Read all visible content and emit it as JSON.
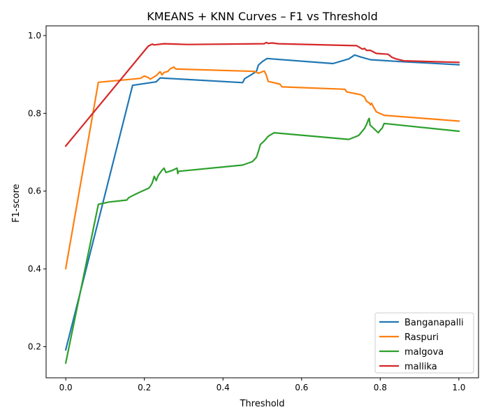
{
  "chart_data": {
    "type": "line",
    "title": "KMEANS + KNN Curves – F1 vs Threshold",
    "xlabel": "Threshold",
    "ylabel": "F1-score",
    "xlim": [
      -0.05,
      1.05
    ],
    "ylim": [
      0.12,
      1.025
    ],
    "xticks": [
      0.0,
      0.2,
      0.4,
      0.6,
      0.8,
      1.0
    ],
    "xtick_labels": [
      "0.0",
      "0.2",
      "0.4",
      "0.6",
      "0.8",
      "1.0"
    ],
    "yticks": [
      0.2,
      0.4,
      0.6,
      0.8,
      1.0
    ],
    "ytick_labels": [
      "0.2",
      "0.4",
      "0.6",
      "0.8",
      "1.0"
    ],
    "grid": false,
    "legend_position": "lower-right",
    "series": [
      {
        "name": "Banganapalli",
        "color": "#1f77b4",
        "points": [
          [
            0.0,
            0.192
          ],
          [
            0.17,
            0.872
          ],
          [
            0.23,
            0.881
          ],
          [
            0.24,
            0.891
          ],
          [
            0.45,
            0.879
          ],
          [
            0.455,
            0.889
          ],
          [
            0.47,
            0.898
          ],
          [
            0.485,
            0.908
          ],
          [
            0.49,
            0.924
          ],
          [
            0.5,
            0.933
          ],
          [
            0.512,
            0.941
          ],
          [
            0.68,
            0.928
          ],
          [
            0.72,
            0.94
          ],
          [
            0.735,
            0.95
          ],
          [
            0.75,
            0.945
          ],
          [
            0.775,
            0.938
          ],
          [
            0.85,
            0.933
          ],
          [
            1.0,
            0.925
          ]
        ]
      },
      {
        "name": "Raspuri",
        "color": "#ff7f0e",
        "points": [
          [
            0.0,
            0.401
          ],
          [
            0.083,
            0.88
          ],
          [
            0.17,
            0.888
          ],
          [
            0.19,
            0.89
          ],
          [
            0.2,
            0.896
          ],
          [
            0.21,
            0.892
          ],
          [
            0.215,
            0.888
          ],
          [
            0.23,
            0.897
          ],
          [
            0.24,
            0.907
          ],
          [
            0.245,
            0.899
          ],
          [
            0.25,
            0.905
          ],
          [
            0.26,
            0.908
          ],
          [
            0.265,
            0.914
          ],
          [
            0.275,
            0.919
          ],
          [
            0.28,
            0.914
          ],
          [
            0.48,
            0.908
          ],
          [
            0.49,
            0.903
          ],
          [
            0.505,
            0.909
          ],
          [
            0.51,
            0.899
          ],
          [
            0.515,
            0.882
          ],
          [
            0.545,
            0.875
          ],
          [
            0.55,
            0.868
          ],
          [
            0.71,
            0.862
          ],
          [
            0.715,
            0.855
          ],
          [
            0.75,
            0.848
          ],
          [
            0.76,
            0.842
          ],
          [
            0.765,
            0.831
          ],
          [
            0.772,
            0.827
          ],
          [
            0.775,
            0.822
          ],
          [
            0.778,
            0.826
          ],
          [
            0.782,
            0.818
          ],
          [
            0.79,
            0.804
          ],
          [
            0.81,
            0.795
          ],
          [
            1.0,
            0.78
          ]
        ]
      },
      {
        "name": "malgova",
        "color": "#2ca02c",
        "points": [
          [
            0.0,
            0.158
          ],
          [
            0.083,
            0.566
          ],
          [
            0.11,
            0.572
          ],
          [
            0.155,
            0.577
          ],
          [
            0.16,
            0.583
          ],
          [
            0.175,
            0.591
          ],
          [
            0.19,
            0.598
          ],
          [
            0.21,
            0.607
          ],
          [
            0.215,
            0.612
          ],
          [
            0.22,
            0.621
          ],
          [
            0.225,
            0.638
          ],
          [
            0.23,
            0.627
          ],
          [
            0.235,
            0.64
          ],
          [
            0.245,
            0.654
          ],
          [
            0.25,
            0.659
          ],
          [
            0.255,
            0.648
          ],
          [
            0.27,
            0.653
          ],
          [
            0.283,
            0.659
          ],
          [
            0.285,
            0.645
          ],
          [
            0.287,
            0.651
          ],
          [
            0.45,
            0.667
          ],
          [
            0.475,
            0.676
          ],
          [
            0.485,
            0.687
          ],
          [
            0.49,
            0.702
          ],
          [
            0.495,
            0.72
          ],
          [
            0.505,
            0.729
          ],
          [
            0.515,
            0.741
          ],
          [
            0.53,
            0.75
          ],
          [
            0.72,
            0.733
          ],
          [
            0.745,
            0.743
          ],
          [
            0.76,
            0.761
          ],
          [
            0.765,
            0.771
          ],
          [
            0.77,
            0.784
          ],
          [
            0.772,
            0.787
          ],
          [
            0.774,
            0.77
          ],
          [
            0.795,
            0.75
          ],
          [
            0.8,
            0.757
          ],
          [
            0.805,
            0.762
          ],
          [
            0.81,
            0.774
          ],
          [
            1.0,
            0.754
          ]
        ]
      },
      {
        "name": "mallika",
        "color": "#d62728",
        "points": [
          [
            0.0,
            0.716
          ],
          [
            0.21,
            0.973
          ],
          [
            0.22,
            0.978
          ],
          [
            0.225,
            0.976
          ],
          [
            0.25,
            0.979
          ],
          [
            0.31,
            0.977
          ],
          [
            0.505,
            0.979
          ],
          [
            0.51,
            0.982
          ],
          [
            0.515,
            0.98
          ],
          [
            0.525,
            0.981
          ],
          [
            0.54,
            0.979
          ],
          [
            0.74,
            0.974
          ],
          [
            0.755,
            0.965
          ],
          [
            0.76,
            0.967
          ],
          [
            0.765,
            0.962
          ],
          [
            0.775,
            0.962
          ],
          [
            0.79,
            0.954
          ],
          [
            0.82,
            0.952
          ],
          [
            0.83,
            0.944
          ],
          [
            0.84,
            0.94
          ],
          [
            0.86,
            0.935
          ],
          [
            1.0,
            0.931
          ]
        ]
      }
    ]
  }
}
